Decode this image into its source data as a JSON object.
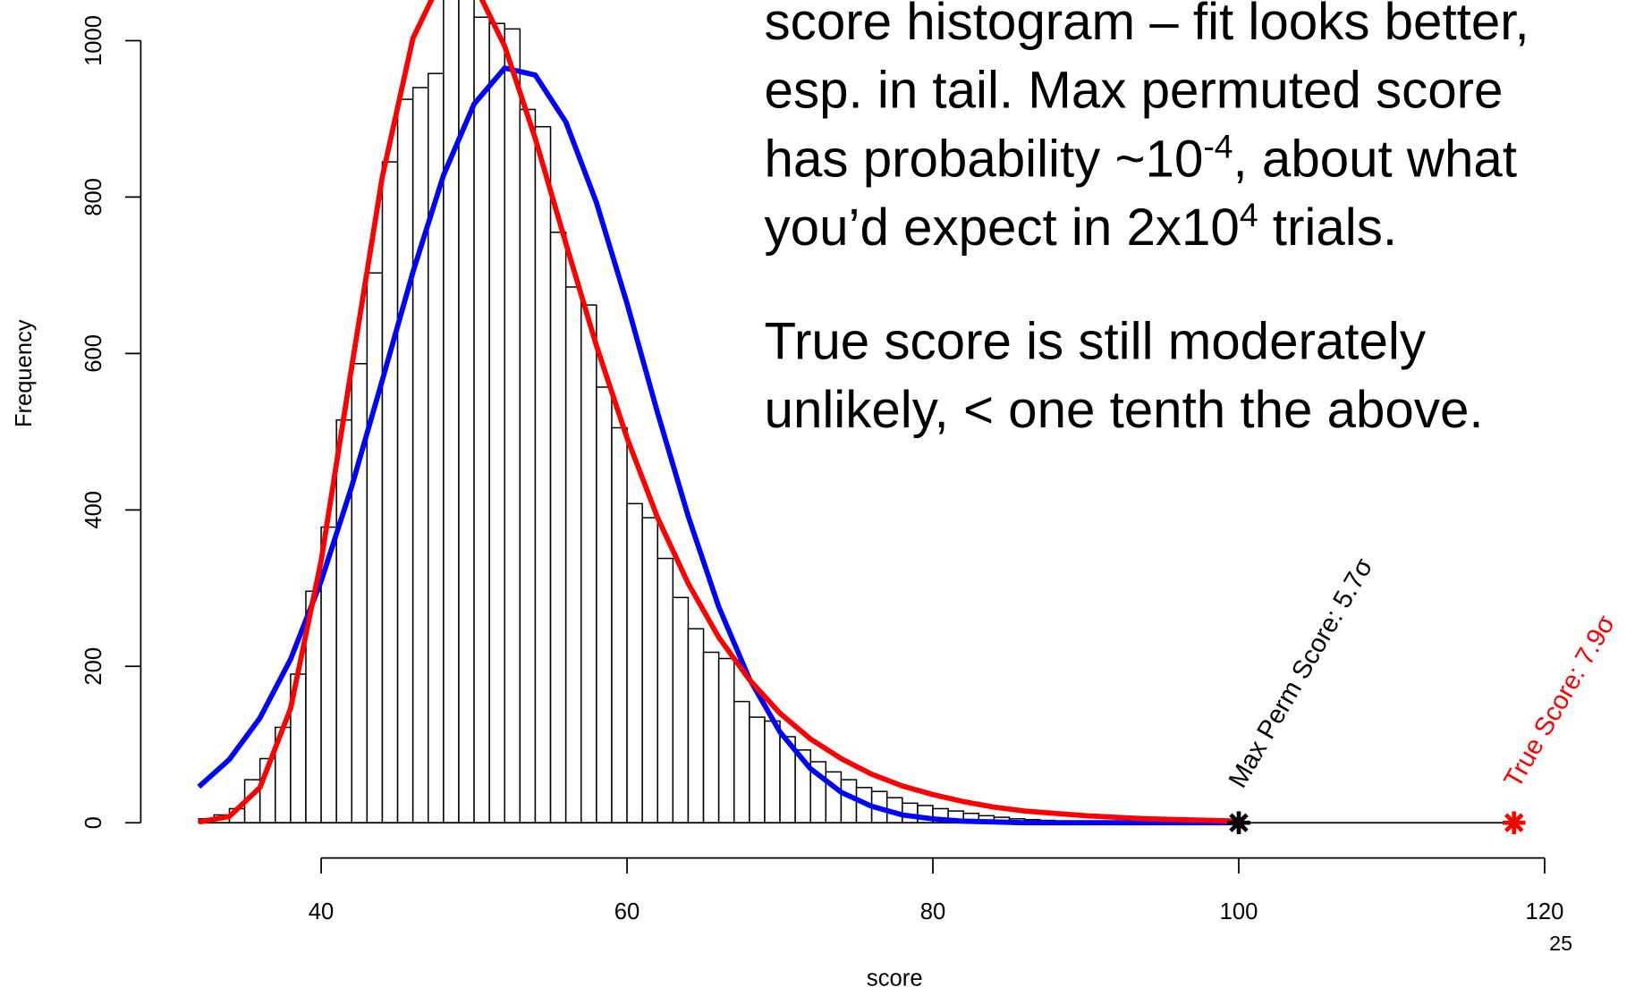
{
  "chart_data": {
    "type": "histogram",
    "x_label": "score",
    "y_label": "Frequency",
    "bins": [
      32,
      33,
      34,
      35,
      36,
      37,
      38,
      39,
      40,
      41,
      42,
      43,
      44,
      45,
      46,
      47,
      48,
      49,
      50,
      51,
      52,
      53,
      54,
      55,
      56,
      57,
      58,
      59,
      60,
      61,
      62,
      63,
      64,
      65,
      66,
      67,
      68,
      69,
      70,
      71,
      72,
      73,
      74,
      75,
      76,
      77,
      78,
      79,
      80,
      81,
      82,
      83,
      84,
      85,
      86,
      87,
      88,
      89,
      90
    ],
    "values": [
      5,
      10,
      18,
      55,
      82,
      122,
      190,
      296,
      378,
      515,
      587,
      703,
      845,
      925,
      940,
      958,
      1080,
      1100,
      1030,
      1022,
      1015,
      912,
      890,
      755,
      685,
      662,
      557,
      505,
      408,
      390,
      338,
      288,
      248,
      218,
      210,
      155,
      135,
      130,
      110,
      93,
      78,
      65,
      55,
      45,
      40,
      32,
      25,
      22,
      18,
      15,
      12,
      9,
      7,
      5,
      4,
      3,
      2,
      1
    ],
    "color": "#ffffff",
    "edge_color": "#000000",
    "series": [
      {
        "color": "#0000ff",
        "x": [
          32,
          34,
          36,
          38,
          40,
          42,
          44,
          46,
          48,
          50,
          52,
          54,
          56,
          58,
          60,
          62,
          64,
          66,
          68,
          70,
          72,
          74,
          76,
          78,
          80,
          82,
          84,
          86,
          88,
          90,
          92,
          94,
          96,
          98,
          100
        ],
        "values": [
          46,
          81,
          134,
          209,
          309,
          430,
          566,
          704,
          828,
          919,
          965,
          956,
          896,
          793,
          664,
          524,
          392,
          276,
          184,
          116,
          69,
          39,
          21,
          10,
          5,
          2,
          1,
          0,
          0,
          0,
          0,
          0,
          0,
          0,
          0
        ]
      },
      {
        "color": "#ff0000",
        "x": [
          32,
          34,
          36,
          38,
          40,
          42,
          44,
          46,
          48,
          50,
          52,
          54,
          56,
          58,
          60,
          62,
          64,
          66,
          68,
          70,
          72,
          74,
          76,
          78,
          80,
          82,
          84,
          86,
          88,
          90,
          92,
          94,
          96,
          98,
          100
        ],
        "values": [
          1,
          8,
          45,
          146,
          335,
          583,
          826,
          1003,
          1084,
          1073,
          993,
          875,
          741,
          610,
          492,
          390,
          306,
          237,
          183,
          140,
          107,
          82,
          62,
          47,
          36,
          27,
          20,
          15,
          12,
          9,
          7,
          5,
          4,
          3,
          2
        ]
      }
    ],
    "points": [
      {
        "label": "Max Perm Score: 5.7σ",
        "x": 100,
        "y": 0,
        "color": "#000000"
      },
      {
        "label": "True Score: 7.9σ",
        "x": 118,
        "y": 0,
        "color": "#ff0000"
      }
    ],
    "xlim": [
      28,
      124
    ],
    "ylim": [
      0,
      1052
    ],
    "xticks": [
      40,
      60,
      80,
      100,
      120
    ],
    "yticks": [
      0,
      200,
      400,
      600,
      800,
      1000
    ],
    "annotation_paragraphs": [
      [
        [
          "score histogram – fit looks better,"
        ],
        [
          "esp. in tail.  Max permuted score"
        ],
        [
          "has probability ~10",
          "-4",
          ", about what"
        ],
        [
          "you’d expect in 2x10",
          "4",
          " trials."
        ]
      ],
      [
        [
          "True score is still moderately"
        ],
        [
          "unlikely, < one tenth the above."
        ]
      ]
    ]
  },
  "slide": {
    "page_number": "25"
  }
}
